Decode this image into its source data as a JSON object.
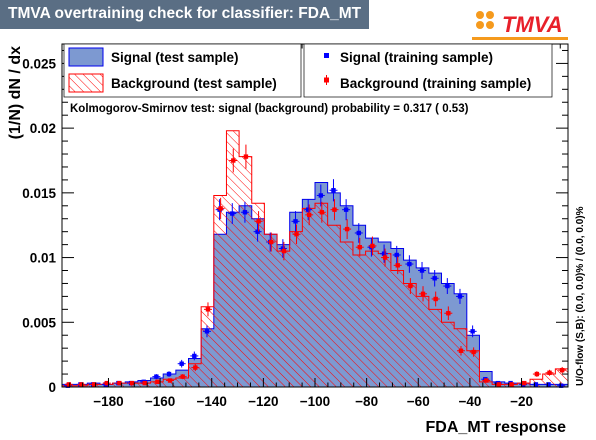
{
  "header": {
    "title": "TMVA overtraining check for classifier: FDA_MT",
    "logo_text": "TMVA",
    "logo_icon": "tmva-logo-icon"
  },
  "chart_data": {
    "type": "bar",
    "xlabel": "FDA_MT response",
    "ylabel": "(1/N) dN / dx",
    "xlim": [
      -198,
      -2
    ],
    "ylim": [
      0,
      0.0265
    ],
    "xticks": [
      -180,
      -160,
      -140,
      -120,
      -100,
      -80,
      -60,
      -40,
      -20
    ],
    "yticks": [
      0,
      0.005,
      0.01,
      0.015,
      0.02,
      0.025
    ],
    "ytick_labels": [
      "0",
      "0.005",
      "0.01",
      "0.015",
      "0.02",
      "0.025"
    ],
    "annotation": "Kolmogorov-Smirnov test: signal (background) probability = 0.317 ( 0.53)",
    "side_note": "U/O-flow (S,B): (0.0, 0.0)% / (0.0, 0.0)%",
    "legend_placement": "top",
    "colors": {
      "signal_fill": "#7d99d1",
      "signal_line": "#0000ee",
      "background": "#ff0000",
      "signal_points": "#0000ff",
      "background_points": "#ff0000"
    },
    "bin_edges_start": -198,
    "bin_width": 4.9,
    "series": [
      {
        "name": "Signal (test sample)",
        "kind": "hist-filled",
        "values": [
          0.0002,
          0.0002,
          0.0003,
          0.0002,
          0.0003,
          0.0004,
          0.0005,
          0.0007,
          0.001,
          0.0013,
          0.0022,
          0.0045,
          0.0118,
          0.0135,
          0.014,
          0.013,
          0.0118,
          0.011,
          0.0135,
          0.0145,
          0.0158,
          0.015,
          0.014,
          0.0125,
          0.0115,
          0.0112,
          0.0107,
          0.0098,
          0.0092,
          0.0088,
          0.008,
          0.0072,
          0.004,
          0.0012,
          0.0004,
          0.0003,
          0.0003,
          0.0002,
          0.0002,
          0.0002
        ]
      },
      {
        "name": "Background (test sample)",
        "kind": "hist-hatched",
        "values": [
          0.0001,
          0.0001,
          0.0002,
          0.0002,
          0.0003,
          0.0003,
          0.0003,
          0.0004,
          0.0006,
          0.0007,
          0.0018,
          0.0062,
          0.0148,
          0.0198,
          0.0178,
          0.0142,
          0.0118,
          0.0105,
          0.012,
          0.0138,
          0.0142,
          0.0125,
          0.0112,
          0.0102,
          0.0105,
          0.0103,
          0.009,
          0.008,
          0.007,
          0.006,
          0.005,
          0.0045,
          0.0028,
          0.0004,
          0.0002,
          0.0002,
          0.0003,
          0.0006,
          0.001,
          0.0014
        ]
      },
      {
        "name": "Signal (training sample)",
        "kind": "points",
        "values": [
          0.0001,
          0.0002,
          0.0002,
          0.0002,
          0.0003,
          0.0003,
          0.0004,
          0.0008,
          0.001,
          0.0018,
          0.0024,
          0.0043,
          0.0137,
          0.0134,
          0.0135,
          0.012,
          0.0112,
          0.0107,
          0.0128,
          0.0137,
          0.0148,
          0.0152,
          0.0137,
          0.0119,
          0.0108,
          0.0103,
          0.0102,
          0.0095,
          0.009,
          0.0084,
          0.0078,
          0.007,
          0.0043,
          0.0006,
          0.0003,
          0.0003,
          0.0002,
          0.0002,
          0.0002,
          0.0001
        ]
      },
      {
        "name": "Background (training sample)",
        "kind": "points",
        "values": [
          0.0002,
          0.0002,
          0.0002,
          0.0003,
          0.0003,
          0.0003,
          0.0003,
          0.0004,
          0.0005,
          0.0008,
          0.0015,
          0.006,
          0.0138,
          0.0175,
          0.0178,
          0.0128,
          0.0112,
          0.0105,
          0.0118,
          0.0133,
          0.0135,
          0.0137,
          0.0122,
          0.0108,
          0.0109,
          0.01,
          0.0094,
          0.0078,
          0.0072,
          0.0068,
          0.0057,
          0.0028,
          0.0027,
          0.0005,
          0.0002,
          0.0002,
          0.0003,
          0.001,
          0.0011,
          0.0013
        ]
      }
    ]
  }
}
